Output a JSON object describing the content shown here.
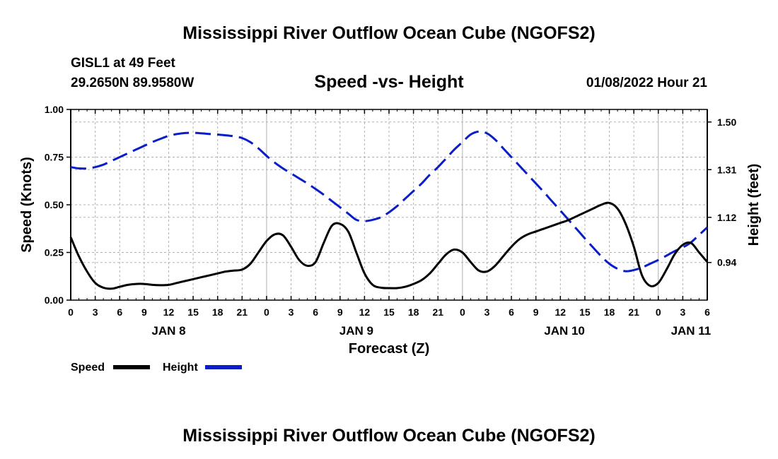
{
  "chart_data": {
    "type": "line",
    "title": "Mississippi River Outflow Ocean Cube (NGOFS2)",
    "subtitle": "Speed -vs- Height",
    "station": "GISL1 at 49 Feet",
    "location": "29.2650N  89.9580W",
    "timestamp": "01/08/2022 Hour 21",
    "xlabel": "Forecast (Z)",
    "ylabel_left": "Speed (Knots)",
    "ylabel_right": "Height (feet)",
    "ylim_left": [
      0,
      1.0
    ],
    "yticks_left": [
      "0.00",
      "0.25",
      "0.50",
      "0.75",
      "1.00"
    ],
    "ylim_right": [
      0.79,
      1.55
    ],
    "yticks_right": [
      "0.94",
      "1.12",
      "1.31",
      "1.50"
    ],
    "xlim_hours": [
      0,
      78
    ],
    "x_ticks": [
      "0",
      "3",
      "6",
      "9",
      "12",
      "15",
      "18",
      "21",
      "0",
      "3",
      "6",
      "9",
      "12",
      "15",
      "18",
      "21",
      "0",
      "3",
      "6",
      "9",
      "12",
      "15",
      "18",
      "21",
      "0",
      "3",
      "6"
    ],
    "day_labels": [
      {
        "label": "JAN 8",
        "hour": 12
      },
      {
        "label": "JAN 9",
        "hour": 35
      },
      {
        "label": "JAN 10",
        "hour": 60.5
      },
      {
        "label": "JAN 11",
        "hour": 76
      }
    ],
    "legend": [
      "Speed",
      "Height"
    ],
    "colors": {
      "speed": "#000000",
      "height": "#0a1ec8",
      "grid": "#b0b0b0"
    },
    "series": [
      {
        "name": "Speed",
        "unit": "knots",
        "x": [
          0,
          1,
          2,
          3,
          4,
          5,
          6,
          7,
          8,
          9,
          10,
          11,
          12,
          13,
          14,
          15,
          16,
          17,
          18,
          19,
          20,
          21,
          22,
          23,
          24,
          25,
          26,
          27,
          28,
          29,
          30,
          31,
          32,
          33,
          34,
          35,
          36,
          37,
          38,
          39,
          40,
          41,
          42,
          43,
          44,
          45,
          46,
          47,
          48,
          49,
          50,
          51,
          52,
          53,
          54,
          55,
          56,
          57,
          58,
          59,
          60,
          61,
          62,
          63,
          64,
          65,
          66,
          67,
          68,
          69,
          70,
          71,
          72,
          73,
          74,
          75,
          76,
          77,
          78
        ],
        "values": [
          0.33,
          0.23,
          0.15,
          0.09,
          0.065,
          0.06,
          0.07,
          0.08,
          0.085,
          0.085,
          0.08,
          0.078,
          0.08,
          0.09,
          0.1,
          0.11,
          0.12,
          0.13,
          0.14,
          0.15,
          0.155,
          0.16,
          0.19,
          0.25,
          0.31,
          0.345,
          0.34,
          0.28,
          0.21,
          0.18,
          0.2,
          0.3,
          0.39,
          0.4,
          0.36,
          0.25,
          0.14,
          0.08,
          0.065,
          0.063,
          0.063,
          0.07,
          0.085,
          0.105,
          0.14,
          0.19,
          0.24,
          0.265,
          0.25,
          0.2,
          0.155,
          0.15,
          0.18,
          0.23,
          0.28,
          0.32,
          0.345,
          0.36,
          0.375,
          0.39,
          0.405,
          0.42,
          0.44,
          0.46,
          0.48,
          0.5,
          0.51,
          0.48,
          0.4,
          0.28,
          0.13,
          0.075,
          0.09,
          0.16,
          0.24,
          0.29,
          0.3,
          0.25,
          0.2
        ]
      },
      {
        "name": "Height",
        "unit": "feet",
        "x": [
          0,
          1,
          2,
          3,
          4,
          5,
          6,
          7,
          8,
          9,
          10,
          11,
          12,
          13,
          14,
          15,
          16,
          17,
          18,
          19,
          20,
          21,
          22,
          23,
          24,
          25,
          26,
          27,
          28,
          29,
          30,
          31,
          32,
          33,
          34,
          35,
          36,
          37,
          38,
          39,
          40,
          41,
          42,
          43,
          44,
          45,
          46,
          47,
          48,
          49,
          50,
          51,
          52,
          53,
          54,
          55,
          56,
          57,
          58,
          59,
          60,
          61,
          62,
          63,
          64,
          65,
          66,
          67,
          68,
          69,
          70,
          71,
          72,
          73,
          74,
          75,
          76,
          77,
          78
        ],
        "values": [
          1.32,
          1.315,
          1.315,
          1.32,
          1.33,
          1.345,
          1.36,
          1.375,
          1.39,
          1.405,
          1.42,
          1.433,
          1.445,
          1.452,
          1.456,
          1.457,
          1.455,
          1.452,
          1.45,
          1.447,
          1.443,
          1.436,
          1.42,
          1.395,
          1.365,
          1.338,
          1.315,
          1.295,
          1.275,
          1.255,
          1.233,
          1.21,
          1.185,
          1.16,
          1.135,
          1.11,
          1.105,
          1.11,
          1.12,
          1.14,
          1.165,
          1.195,
          1.225,
          1.255,
          1.29,
          1.32,
          1.355,
          1.39,
          1.42,
          1.45,
          1.462,
          1.455,
          1.43,
          1.395,
          1.36,
          1.325,
          1.29,
          1.255,
          1.22,
          1.183,
          1.147,
          1.11,
          1.073,
          1.036,
          1.0,
          0.965,
          0.935,
          0.915,
          0.905,
          0.91,
          0.92,
          0.935,
          0.95,
          0.967,
          0.985,
          1.0,
          1.02,
          1.05,
          1.08
        ]
      }
    ]
  },
  "footer": {
    "repeated_title": "Mississippi River Outflow Ocean Cube (NGOFS2)"
  }
}
